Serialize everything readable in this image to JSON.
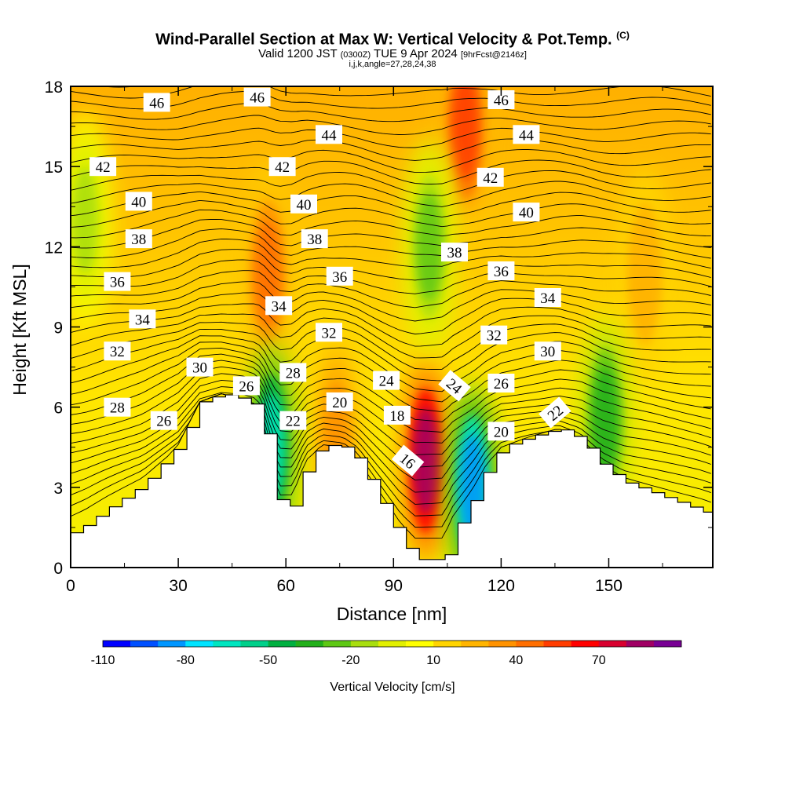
{
  "header": {
    "title": "Wind-Parallel Section at Max W: Vertical Velocity & Pot.Temp.",
    "copyright": "(C)",
    "valid_prefix": "Valid 1200 JST",
    "valid_utc": "(0300Z)",
    "valid_date": "TUE 9 Apr 2024",
    "forecast": "[9hrFcst@2146z]",
    "indices": "i,j,k,angle=27,28,24,38"
  },
  "chart_data": {
    "type": "heatmap",
    "xlabel": "Distance [nm]",
    "ylabel": "Height [Kft MSL]",
    "xlim": [
      0,
      179
    ],
    "ylim": [
      0,
      18
    ],
    "x_ticks": [
      0,
      30,
      60,
      90,
      120,
      150
    ],
    "y_ticks": [
      0,
      3,
      6,
      9,
      12,
      15,
      18
    ],
    "terrain_kft": [
      [
        0,
        1.3
      ],
      [
        4,
        1.6
      ],
      [
        10,
        2.2
      ],
      [
        20,
        3.1
      ],
      [
        30,
        4.6
      ],
      [
        36,
        6.2
      ],
      [
        42,
        6.5
      ],
      [
        48,
        6.3
      ],
      [
        52,
        6.0
      ],
      [
        54,
        5.0
      ],
      [
        56,
        3.5
      ],
      [
        58,
        2.3
      ],
      [
        62,
        2.3
      ],
      [
        64,
        3.3
      ],
      [
        66,
        4.0
      ],
      [
        70,
        4.6
      ],
      [
        76,
        4.5
      ],
      [
        80,
        4.0
      ],
      [
        84,
        3.0
      ],
      [
        88,
        2.0
      ],
      [
        92,
        1.0
      ],
      [
        96,
        0.3
      ],
      [
        104,
        0.3
      ],
      [
        106,
        1.2
      ],
      [
        112,
        2.6
      ],
      [
        116,
        3.8
      ],
      [
        120,
        4.5
      ],
      [
        128,
        4.9
      ],
      [
        136,
        5.2
      ],
      [
        142,
        4.8
      ],
      [
        148,
        3.8
      ],
      [
        154,
        3.2
      ],
      [
        162,
        2.8
      ],
      [
        170,
        2.4
      ],
      [
        176,
        2.1
      ],
      [
        179,
        1.9
      ]
    ],
    "colorbar": {
      "label": "Vertical Velocity [cm/s]",
      "tick_labels": [
        "-110",
        "-80",
        "-50",
        "-20",
        "10",
        "40",
        "70"
      ],
      "colors": [
        "#0000ff",
        "#0050ff",
        "#0096ff",
        "#00e4ff",
        "#00e6c0",
        "#00d08a",
        "#00b040",
        "#22b01a",
        "#5ec814",
        "#a8de0e",
        "#e2f000",
        "#ffff00",
        "#ffd400",
        "#ffb400",
        "#ff9200",
        "#ff6e00",
        "#ff3c00",
        "#ff0000",
        "#d8002e",
        "#a00064",
        "#780094"
      ]
    },
    "updrafts": [
      {
        "x": 55,
        "y": 11.0,
        "value": 40
      },
      {
        "x": 110,
        "y": 16.5,
        "value": 50
      },
      {
        "x": 99,
        "y": 4.0,
        "value": 80
      },
      {
        "x": 74,
        "y": 5.0,
        "value": 30
      },
      {
        "x": 160,
        "y": 11.0,
        "value": 20
      }
    ],
    "downdrafts": [
      {
        "x": 112,
        "y": 3.0,
        "value": -90
      },
      {
        "x": 56,
        "y": 4.5,
        "value": -70
      },
      {
        "x": 149,
        "y": 5.5,
        "value": -40
      },
      {
        "x": 100,
        "y": 12.0,
        "value": -30
      },
      {
        "x": 4,
        "y": 13.0,
        "value": -20
      }
    ],
    "contour_labels": [
      {
        "text": "46",
        "x": 24,
        "y": 17.4
      },
      {
        "text": "46",
        "x": 52,
        "y": 17.6
      },
      {
        "text": "46",
        "x": 120,
        "y": 17.5
      },
      {
        "text": "44",
        "x": 72,
        "y": 16.2
      },
      {
        "text": "44",
        "x": 127,
        "y": 16.2
      },
      {
        "text": "42",
        "x": 9,
        "y": 15.0
      },
      {
        "text": "42",
        "x": 59,
        "y": 15.0
      },
      {
        "text": "42",
        "x": 117,
        "y": 14.6
      },
      {
        "text": "40",
        "x": 19,
        "y": 13.7
      },
      {
        "text": "40",
        "x": 65,
        "y": 13.6
      },
      {
        "text": "40",
        "x": 127,
        "y": 13.3
      },
      {
        "text": "38",
        "x": 19,
        "y": 12.3
      },
      {
        "text": "38",
        "x": 68,
        "y": 12.3
      },
      {
        "text": "38",
        "x": 107,
        "y": 11.8
      },
      {
        "text": "36",
        "x": 13,
        "y": 10.7
      },
      {
        "text": "36",
        "x": 75,
        "y": 10.9
      },
      {
        "text": "36",
        "x": 120,
        "y": 11.1
      },
      {
        "text": "34",
        "x": 58,
        "y": 9.8
      },
      {
        "text": "34",
        "x": 20,
        "y": 9.3
      },
      {
        "text": "34",
        "x": 133,
        "y": 10.1
      },
      {
        "text": "32",
        "x": 13,
        "y": 8.1
      },
      {
        "text": "32",
        "x": 72,
        "y": 8.8
      },
      {
        "text": "32",
        "x": 118,
        "y": 8.7
      },
      {
        "text": "30",
        "x": 36,
        "y": 7.5
      },
      {
        "text": "30",
        "x": 133,
        "y": 8.1
      },
      {
        "text": "28",
        "x": 62,
        "y": 7.3
      },
      {
        "text": "28",
        "x": 13,
        "y": 6.0
      },
      {
        "text": "26",
        "x": 49,
        "y": 6.8
      },
      {
        "text": "26",
        "x": 120,
        "y": 6.9
      },
      {
        "text": "26",
        "x": 26,
        "y": 5.5
      },
      {
        "text": "24",
        "x": 88,
        "y": 7.0
      },
      {
        "text": "24",
        "x": 107,
        "y": 6.8,
        "rotate": 40
      },
      {
        "text": "22",
        "x": 62,
        "y": 5.5
      },
      {
        "text": "22",
        "x": 135,
        "y": 5.8,
        "rotate": -40
      },
      {
        "text": "20",
        "x": 75,
        "y": 6.2
      },
      {
        "text": "20",
        "x": 120,
        "y": 5.1
      },
      {
        "text": "18",
        "x": 91,
        "y": 5.7
      },
      {
        "text": "16",
        "x": 94,
        "y": 4.0,
        "rotate": 40
      }
    ]
  }
}
